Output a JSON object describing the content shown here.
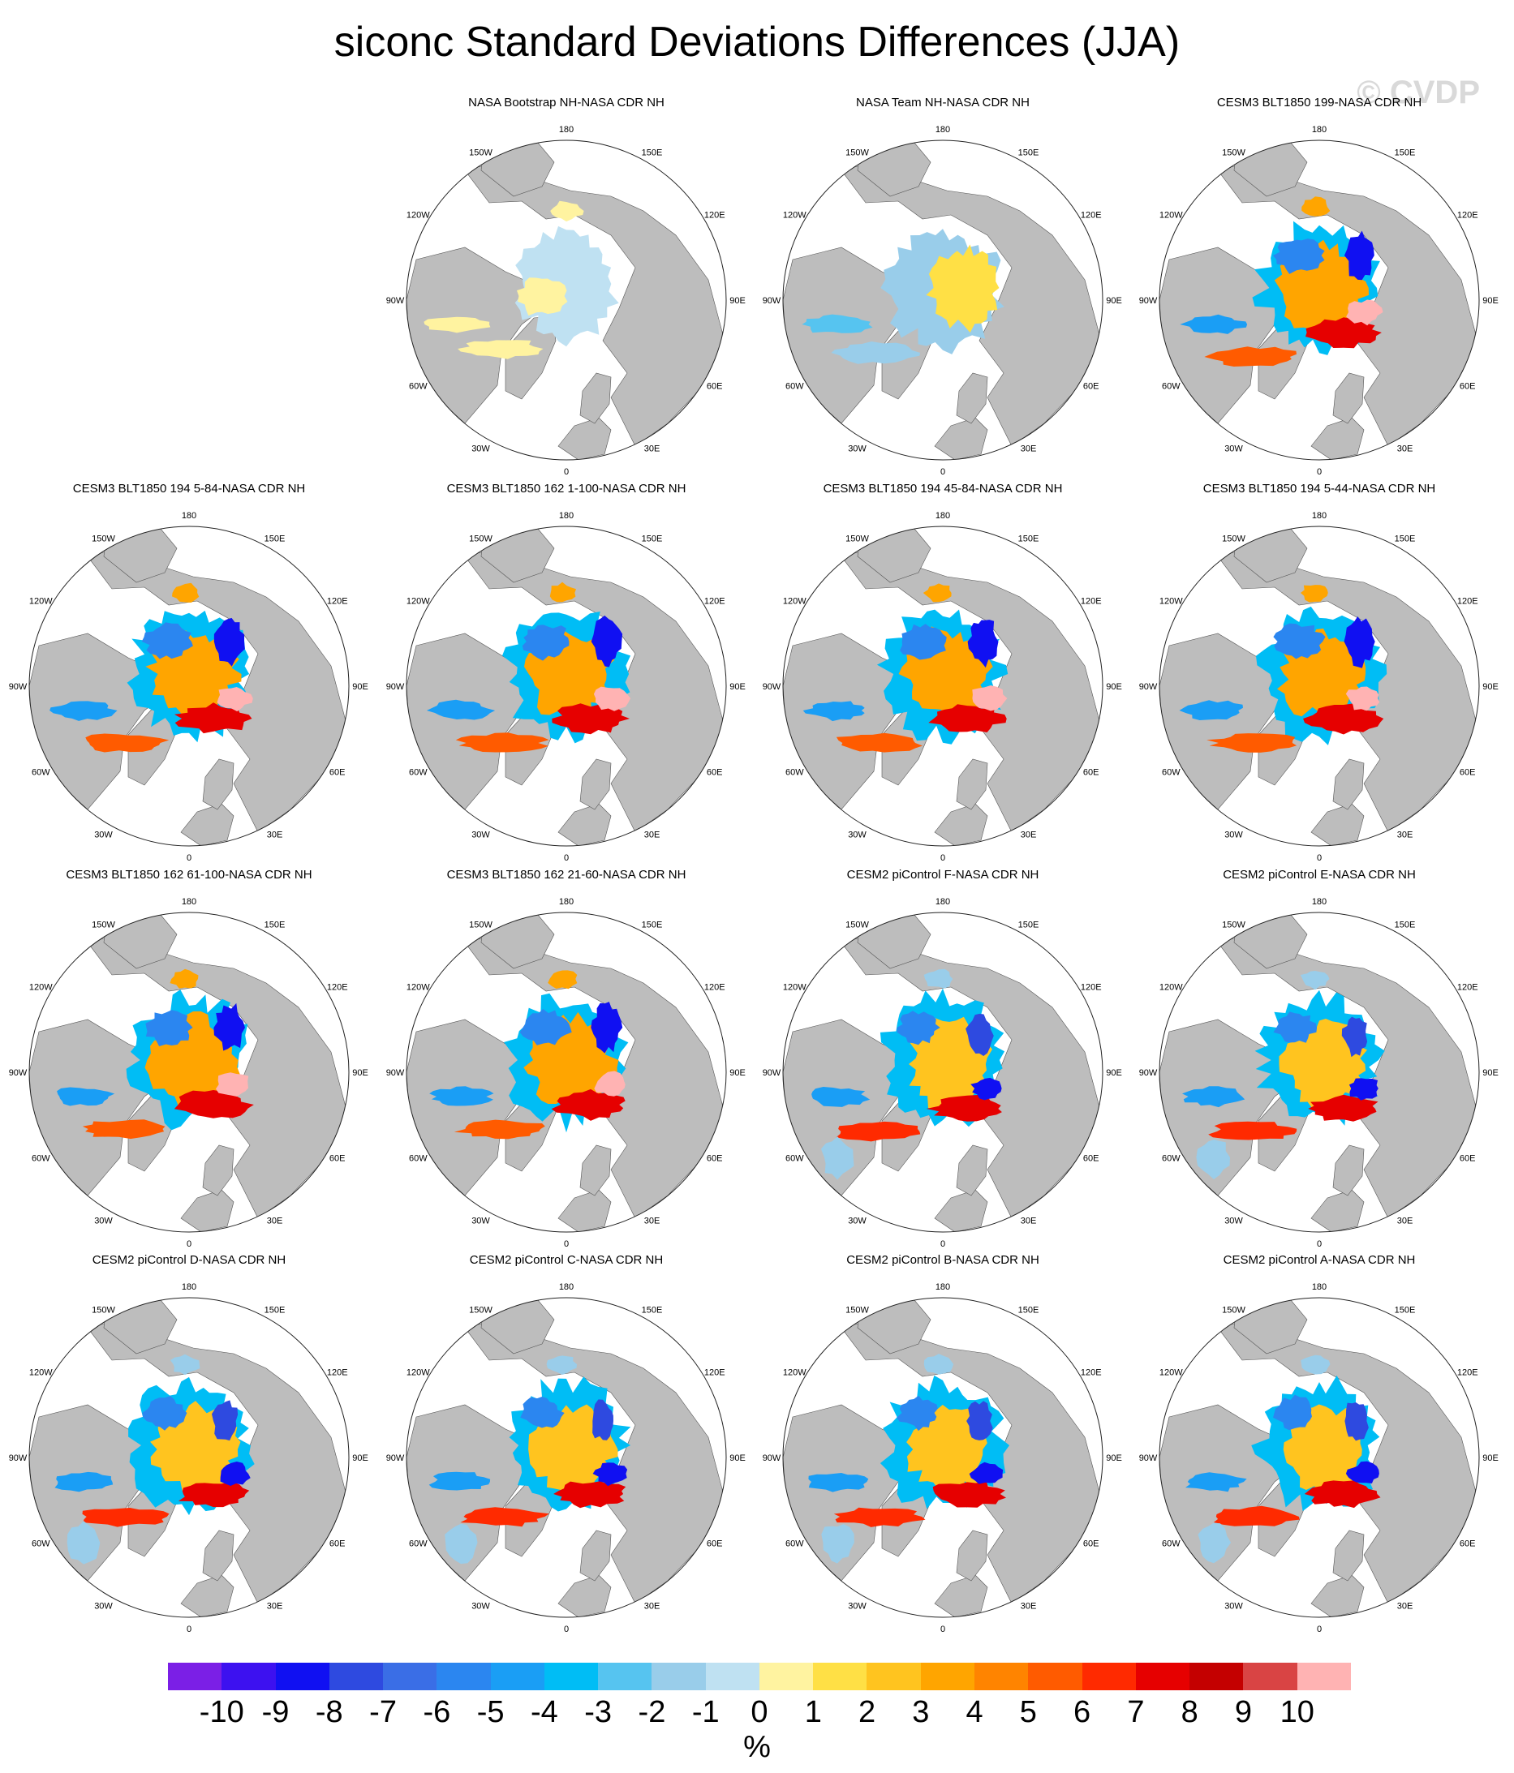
{
  "title": "siconc Standard Deviations Differences (JJA)",
  "watermark": "© CVDP",
  "lon_labels": {
    "top": "180",
    "bottom": "0",
    "e150": "150E",
    "e120": "120E",
    "e90": "90E",
    "e60": "60E",
    "e30": "30E",
    "w150": "150W",
    "w120": "120W",
    "w90": "90W",
    "w60": "60W",
    "w30": "30W"
  },
  "panels": [
    {
      "title": "NASA Bootstrap NH-NASA CDR NH",
      "pattern": "bootstrap"
    },
    {
      "title": "NASA Team NH-NASA CDR NH",
      "pattern": "team"
    },
    {
      "title": "CESM3 BLT1850 199-NASA CDR NH",
      "pattern": "cesm3"
    },
    {
      "title": "CESM3 BLT1850 194 5-84-NASA CDR NH",
      "pattern": "cesm3"
    },
    {
      "title": "CESM3 BLT1850 162 1-100-NASA CDR NH",
      "pattern": "cesm3"
    },
    {
      "title": "CESM3 BLT1850 194 45-84-NASA CDR NH",
      "pattern": "cesm3"
    },
    {
      "title": "CESM3 BLT1850 194 5-44-NASA CDR NH",
      "pattern": "cesm3"
    },
    {
      "title": "CESM3 BLT1850 162 61-100-NASA CDR NH",
      "pattern": "cesm3"
    },
    {
      "title": "CESM3 BLT1850 162 21-60-NASA CDR NH",
      "pattern": "cesm3"
    },
    {
      "title": "CESM2 piControl F-NASA CDR NH",
      "pattern": "cesm2"
    },
    {
      "title": "CESM2 piControl E-NASA CDR NH",
      "pattern": "cesm2"
    },
    {
      "title": "CESM2 piControl D-NASA CDR NH",
      "pattern": "cesm2"
    },
    {
      "title": "CESM2 piControl C-NASA CDR NH",
      "pattern": "cesm2"
    },
    {
      "title": "CESM2 piControl B-NASA CDR NH",
      "pattern": "cesm2"
    },
    {
      "title": "CESM2 piControl A-NASA CDR NH",
      "pattern": "cesm2"
    }
  ],
  "colorbar": {
    "units": "%",
    "tick_labels": [
      "-10",
      "-9",
      "-8",
      "-7",
      "-6",
      "-5",
      "-4",
      "-3",
      "-2",
      "-1",
      "0",
      "1",
      "2",
      "3",
      "4",
      "5",
      "6",
      "7",
      "8",
      "9",
      "10"
    ],
    "colors": [
      "#7b1fe6",
      "#3d11f0",
      "#1010f2",
      "#2e4ae0",
      "#3a6ee6",
      "#2b86f0",
      "#1a9ef5",
      "#00bdf5",
      "#56c4f0",
      "#99cdea",
      "#bfe1f2",
      "#fff3a0",
      "#ffe045",
      "#ffc41f",
      "#ffa500",
      "#ff8400",
      "#ff5b00",
      "#ff2a00",
      "#e60000",
      "#c40000",
      "#d94444",
      "#ffb3b3"
    ]
  },
  "color_roles": {
    "land": "#bdbdbd",
    "ocean": "#ffffff"
  }
}
